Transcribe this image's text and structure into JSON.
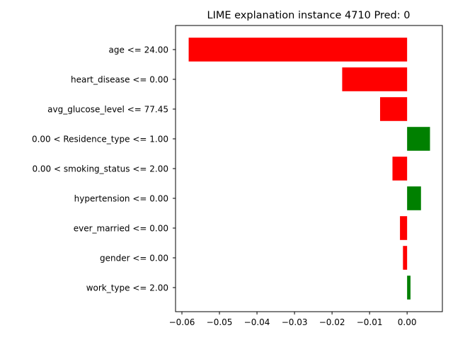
{
  "chart_data": {
    "type": "bar",
    "orientation": "horizontal",
    "title": "LIME explanation instance 4710 Pred: 0",
    "xlabel": "",
    "ylabel": "",
    "categories": [
      "age <= 24.00",
      "heart_disease <= 0.00",
      "avg_glucose_level <= 77.45",
      "0.00 < Residence_type <= 1.00",
      "0.00 < smoking_status <= 2.00",
      "hypertension <= 0.00",
      "ever_married <= 0.00",
      "gender <= 0.00",
      "work_type <= 2.00"
    ],
    "values": [
      -0.0582,
      -0.0173,
      -0.0072,
      0.0061,
      -0.0039,
      0.0037,
      -0.0019,
      -0.0011,
      0.0009
    ],
    "xlim": [
      -0.0617,
      0.0094
    ],
    "xticks": [
      -0.06,
      -0.05,
      -0.04,
      -0.03,
      -0.02,
      -0.01,
      0.0
    ],
    "xtick_labels": [
      "−0.06",
      "−0.05",
      "−0.04",
      "−0.03",
      "−0.02",
      "−0.01",
      "0.00"
    ],
    "grid": false,
    "legend": "none",
    "colors": {
      "positive": "#008000",
      "negative": "#ff0000"
    }
  }
}
